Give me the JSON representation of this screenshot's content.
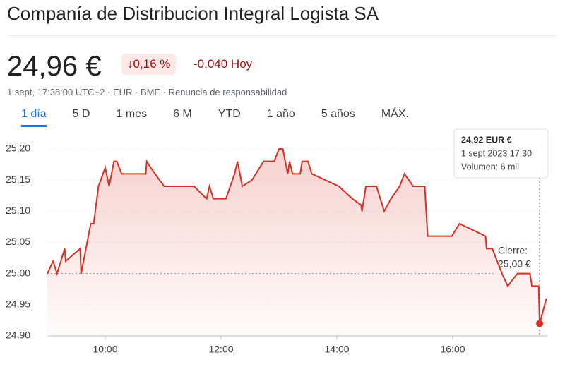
{
  "header": {
    "title": "Companía de Distribucion Integral Logista SA",
    "price": "24,96 €",
    "change_pct": "0,16 %",
    "change_abs": "-0,040 Hoy",
    "meta": "1 sept, 17:38:00 UTC+2 · EUR · BME · Renuncia de responsabilidad"
  },
  "tabs": [
    "1 día",
    "5 D",
    "1 mes",
    "6 M",
    "YTD",
    "1 año",
    "5 años",
    "MÁX."
  ],
  "chart_data": {
    "type": "line",
    "color": "#d93025",
    "grid": true,
    "xlim": [
      540,
      1058
    ],
    "xticks": [
      {
        "value": 600,
        "label": "10:00"
      },
      {
        "value": 720,
        "label": "12:00"
      },
      {
        "value": 840,
        "label": "14:00"
      },
      {
        "value": 960,
        "label": "16:00"
      }
    ],
    "ylim": [
      24.9,
      25.2
    ],
    "yticks": [
      {
        "value": 24.9,
        "label": "24,90"
      },
      {
        "value": 24.95,
        "label": "24,95"
      },
      {
        "value": 25.0,
        "label": "25,00"
      },
      {
        "value": 25.05,
        "label": "25,05"
      },
      {
        "value": 25.1,
        "label": "25,10"
      },
      {
        "value": 25.15,
        "label": "25,15"
      },
      {
        "value": 25.2,
        "label": "25,20"
      }
    ],
    "x": [
      540,
      546,
      550,
      554,
      558,
      559,
      574,
      575,
      585,
      588,
      593,
      600,
      604,
      609,
      612,
      617,
      642,
      643,
      647,
      661,
      692,
      705,
      708,
      712,
      725,
      734,
      737,
      742,
      752,
      764,
      775,
      780,
      784,
      789,
      791,
      794,
      802,
      804,
      810,
      814,
      842,
      856,
      865,
      866,
      870,
      881,
      889,
      896,
      905,
      910,
      919,
      931,
      934,
      959,
      967,
      994,
      995,
      1001,
      1011,
      1017,
      1027,
      1040,
      1042,
      1049,
      1050,
      1057
    ],
    "values": [
      25.0,
      25.02,
      25.0,
      25.02,
      25.04,
      25.02,
      25.04,
      25.0,
      25.08,
      25.08,
      25.14,
      25.17,
      25.14,
      25.18,
      25.18,
      25.16,
      25.16,
      25.18,
      25.17,
      25.14,
      25.14,
      25.12,
      25.14,
      25.12,
      25.12,
      25.16,
      25.18,
      25.14,
      25.15,
      25.18,
      25.18,
      25.2,
      25.2,
      25.16,
      25.18,
      25.16,
      25.16,
      25.18,
      25.18,
      25.16,
      25.14,
      25.12,
      25.11,
      25.1,
      25.14,
      25.14,
      25.1,
      25.12,
      25.14,
      25.16,
      25.14,
      25.14,
      25.06,
      25.06,
      25.08,
      25.06,
      25.04,
      25.04,
      25.0,
      24.98,
      25.0,
      25.0,
      24.98,
      24.98,
      24.92,
      24.96
    ],
    "previous_close": {
      "value": 25.0,
      "label": [
        "Cierre:",
        "25,00 €"
      ]
    },
    "tooltip": {
      "x": 1050,
      "value": 24.92,
      "lines": [
        "24,92 EUR €",
        "1 sept 2023 17:30",
        "Volumen: 6 mil"
      ]
    }
  }
}
